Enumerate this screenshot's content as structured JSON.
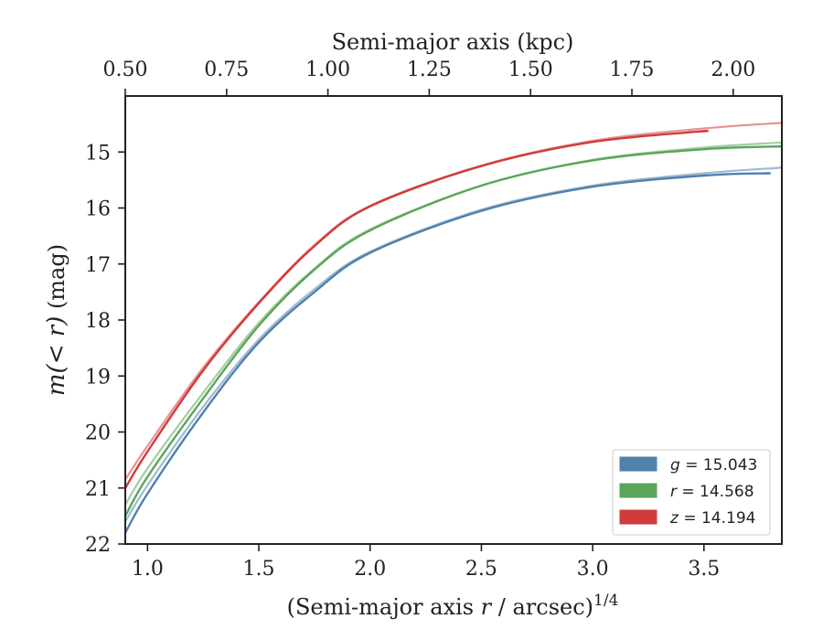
{
  "chart_data": {
    "type": "line",
    "xlabel_bottom": "(Semi-major axis r / arcsec)",
    "xlabel_bottom_italic": "r",
    "xlabel_bottom_pre": "(Semi-major axis ",
    "xlabel_bottom_post": " / arcsec)",
    "xlabel_bottom_sup": "1/4",
    "xlabel_top": "Semi-major axis (kpc)",
    "ylabel": "m(<r) (mag)",
    "ylabel_math": "m(< r)",
    "ylabel_unit": " (mag)",
    "xlim": [
      0.9,
      3.85
    ],
    "ylim": [
      22,
      14.0
    ],
    "y_inverted": true,
    "x_ticks": [
      1.0,
      1.5,
      2.0,
      2.5,
      3.0,
      3.5
    ],
    "x_tick_labels": [
      "1.0",
      "1.5",
      "2.0",
      "2.5",
      "3.0",
      "3.5"
    ],
    "top_ticks_kpc": [
      0.5,
      0.75,
      1.0,
      1.25,
      1.5,
      1.75,
      2.0
    ],
    "top_tick_labels": [
      "0.50",
      "0.75",
      "1.00",
      "1.25",
      "1.50",
      "1.75",
      "2.00"
    ],
    "top_axis_xlim_kpc": [
      0.5,
      2.12
    ],
    "y_ticks": [
      15,
      16,
      17,
      18,
      19,
      20,
      21,
      22
    ],
    "y_tick_labels": [
      "15",
      "16",
      "17",
      "18",
      "19",
      "20",
      "21",
      "22"
    ],
    "grid": false,
    "legend_position": "bottom-right",
    "series": [
      {
        "name": "g = 15.043",
        "band": "g",
        "value": "15.043",
        "color": "#4f81ad",
        "x": [
          0.9,
          1.0,
          1.25,
          1.5,
          1.75,
          2.0,
          2.5,
          3.0,
          3.5,
          3.8
        ],
        "y": [
          21.8,
          21.1,
          19.65,
          18.4,
          17.5,
          16.8,
          16.05,
          15.62,
          15.42,
          15.38
        ],
        "model_x": [
          0.9,
          1.0,
          1.25,
          1.5,
          1.75,
          2.0,
          2.5,
          3.0,
          3.5,
          3.85
        ],
        "model_y": [
          21.6,
          20.95,
          19.55,
          18.35,
          17.45,
          16.78,
          16.03,
          15.6,
          15.38,
          15.28
        ]
      },
      {
        "name": "r = 14.568",
        "band": "r",
        "value": "14.568",
        "color": "#5aa55a",
        "x": [
          0.9,
          1.0,
          1.25,
          1.5,
          1.75,
          2.0,
          2.5,
          3.0,
          3.5,
          3.85
        ],
        "y": [
          21.5,
          20.8,
          19.4,
          18.1,
          17.1,
          16.4,
          15.6,
          15.15,
          14.95,
          14.9
        ],
        "model_x": [
          0.9,
          1.0,
          1.25,
          1.5,
          1.75,
          2.0,
          2.5,
          3.0,
          3.5,
          3.85
        ],
        "model_y": [
          21.3,
          20.65,
          19.3,
          18.05,
          17.08,
          16.38,
          15.6,
          15.14,
          14.92,
          14.83
        ]
      },
      {
        "name": "z = 14.194",
        "band": "z",
        "value": "14.194",
        "color": "#d13b3b",
        "x": [
          0.9,
          1.0,
          1.25,
          1.5,
          1.75,
          2.0,
          2.5,
          3.0,
          3.52
        ],
        "y": [
          21.0,
          20.35,
          18.9,
          17.7,
          16.68,
          15.97,
          15.25,
          14.82,
          14.62
        ],
        "model_x": [
          0.9,
          1.0,
          1.25,
          1.5,
          1.75,
          2.0,
          2.5,
          3.0,
          3.5,
          3.85
        ],
        "model_y": [
          20.85,
          20.25,
          18.85,
          17.68,
          16.66,
          15.96,
          15.24,
          14.8,
          14.58,
          14.48
        ]
      }
    ]
  }
}
